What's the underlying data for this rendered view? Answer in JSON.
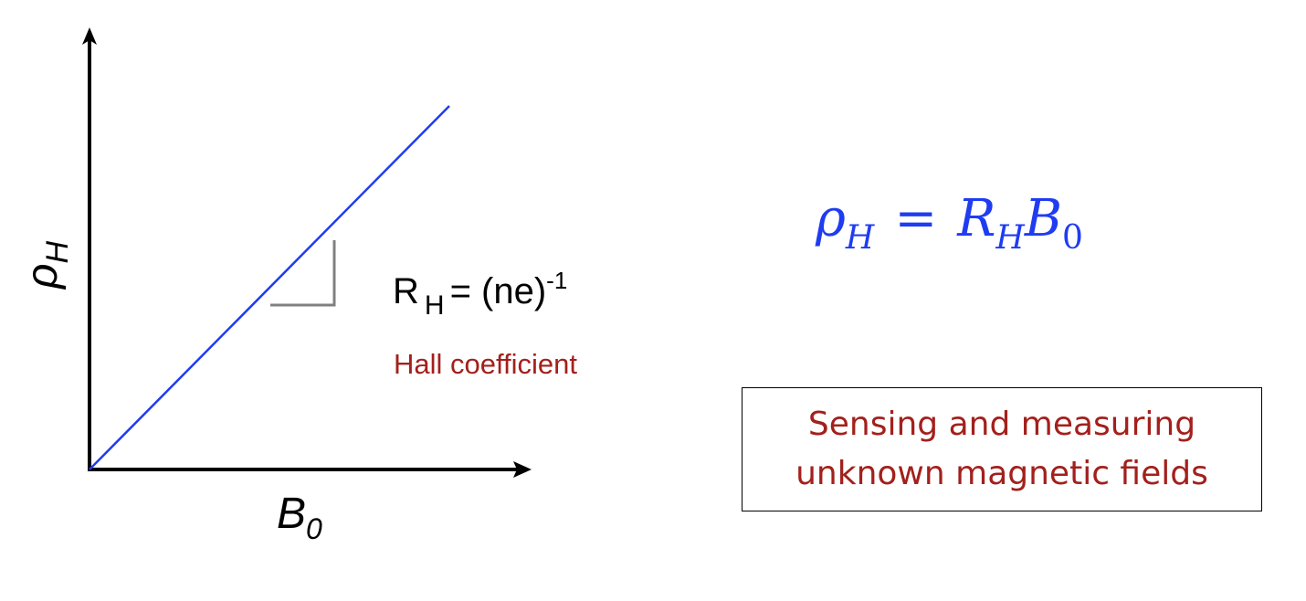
{
  "plot": {
    "y_axis_label": "ρ",
    "y_axis_subscript": "H",
    "x_axis_label": "B",
    "x_axis_subscript": "0",
    "line_color": "#1f3cf2"
  },
  "slope_annotation": {
    "symbol": "R",
    "subscript": "H",
    "equals_text": "= (ne)",
    "superscript": "-1",
    "caption": "Hall coefficient",
    "caption_color": "#a3201c"
  },
  "formula": {
    "lhs_symbol": "ρ",
    "lhs_subscript": "H",
    "equals": "=",
    "rhs_symbol_1": "R",
    "rhs_subscript_1": "H",
    "rhs_symbol_2": "B",
    "rhs_subscript_2": "0",
    "color": "#1f3cf2"
  },
  "application_box": {
    "line_1": "Sensing and measuring",
    "line_2": "unknown magnetic fields",
    "color": "#a3201c"
  }
}
